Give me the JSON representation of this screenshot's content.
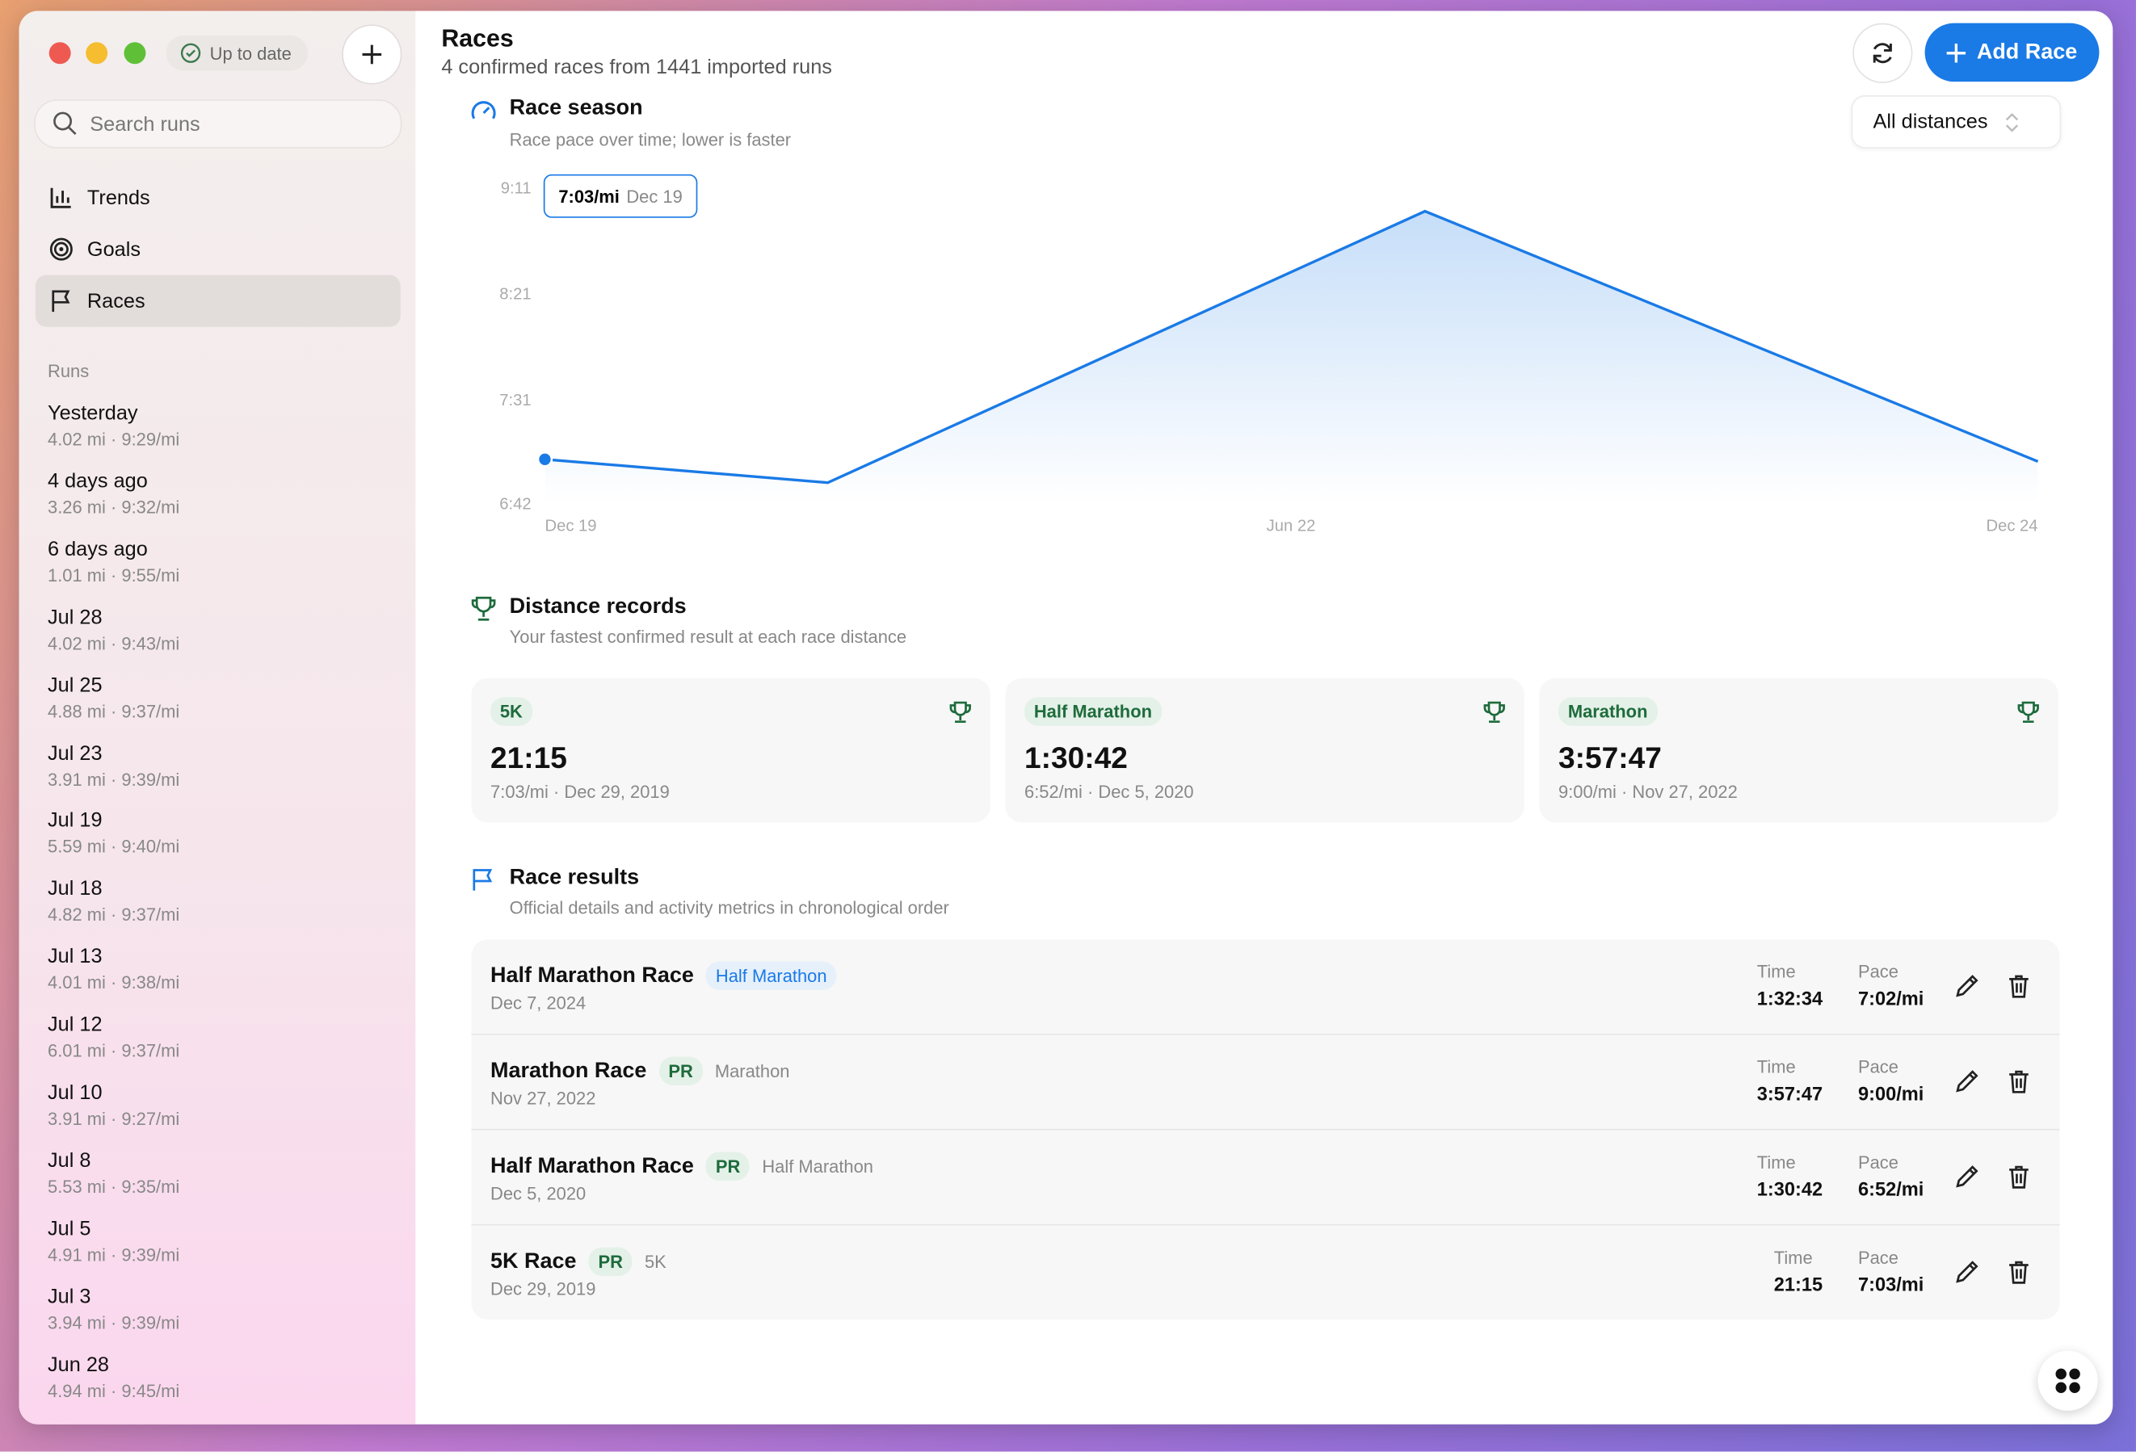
{
  "app": {
    "status": "Up to date"
  },
  "sidebar": {
    "search_placeholder": "Search runs",
    "nav": [
      "Trends",
      "Goals",
      "Races"
    ],
    "runs_heading": "Runs",
    "runs": [
      {
        "date": "Yesterday",
        "detail": "4.02 mi · 9:29/mi"
      },
      {
        "date": "4 days ago",
        "detail": "3.26 mi · 9:32/mi"
      },
      {
        "date": "6 days ago",
        "detail": "1.01 mi · 9:55/mi"
      },
      {
        "date": "Jul 28",
        "detail": "4.02 mi · 9:43/mi"
      },
      {
        "date": "Jul 25",
        "detail": "4.88 mi · 9:37/mi"
      },
      {
        "date": "Jul 23",
        "detail": "3.91 mi · 9:39/mi"
      },
      {
        "date": "Jul 19",
        "detail": "5.59 mi · 9:40/mi"
      },
      {
        "date": "Jul 18",
        "detail": "4.82 mi · 9:37/mi"
      },
      {
        "date": "Jul 13",
        "detail": "4.01 mi · 9:38/mi"
      },
      {
        "date": "Jul 12",
        "detail": "6.01 mi · 9:37/mi"
      },
      {
        "date": "Jul 10",
        "detail": "3.91 mi · 9:27/mi"
      },
      {
        "date": "Jul 8",
        "detail": "5.53 mi · 9:35/mi"
      },
      {
        "date": "Jul 5",
        "detail": "4.91 mi · 9:39/mi"
      },
      {
        "date": "Jul 3",
        "detail": "3.94 mi · 9:39/mi"
      },
      {
        "date": "Jun 28",
        "detail": "4.94 mi · 9:45/mi"
      }
    ]
  },
  "header": {
    "title": "Races",
    "subtitle": "4 confirmed races from 1441 imported runs",
    "add_button": "Add Race"
  },
  "season": {
    "title": "Race season",
    "subtitle": "Race pace over time; lower is faster",
    "filter": "All distances"
  },
  "chart_data": {
    "type": "line",
    "x": [
      "2019-12-29",
      "2020-12-05",
      "2022-11-27",
      "2024-12-07"
    ],
    "series": [
      {
        "color": "#1a7ae6",
        "values": [
          423,
          412,
          540,
          422
        ]
      }
    ],
    "xlim": [
      "2019-12-29",
      "2024-12-07"
    ],
    "xticks": [
      {
        "value": "2019-12-29",
        "label": "Dec 19"
      },
      {
        "value": "2022-06-18",
        "label": "Jun 22"
      },
      {
        "value": "2024-12-07",
        "label": "Dec 24"
      }
    ],
    "ylim": [
      402,
      551
    ],
    "yticks": [
      {
        "value": 551,
        "label": "9:11"
      },
      {
        "value": 501,
        "label": "8:21"
      },
      {
        "value": 451,
        "label": "7:31"
      },
      {
        "value": 402,
        "label": "6:42"
      }
    ],
    "grid": false,
    "area": true,
    "tooltip": {
      "pace": "7:03/mi",
      "date": "Dec 19"
    }
  },
  "records": {
    "title": "Distance records",
    "subtitle": "Your fastest confirmed result at each race distance",
    "items": [
      {
        "distance": "5K",
        "time": "21:15",
        "detail": "7:03/mi · Dec 29, 2019"
      },
      {
        "distance": "Half Marathon",
        "time": "1:30:42",
        "detail": "6:52/mi · Dec 5, 2020"
      },
      {
        "distance": "Marathon",
        "time": "3:57:47",
        "detail": "9:00/mi · Nov 27, 2022"
      }
    ]
  },
  "results": {
    "title": "Race results",
    "subtitle": "Official details and activity metrics in chronological order",
    "time_label": "Time",
    "pace_label": "Pace",
    "items": [
      {
        "name": "Half Marathon Race",
        "distance": "Half Marathon",
        "date": "Dec 7, 2024",
        "time": "1:32:34",
        "pace": "7:02/mi",
        "highlight": true
      },
      {
        "name": "Marathon Race",
        "pr": "PR",
        "distance": "Marathon",
        "date": "Nov 27, 2022",
        "time": "3:57:47",
        "pace": "9:00/mi"
      },
      {
        "name": "Half Marathon Race",
        "pr": "PR",
        "distance": "Half Marathon",
        "date": "Dec 5, 2020",
        "time": "1:30:42",
        "pace": "6:52/mi"
      },
      {
        "name": "5K Race",
        "pr": "PR",
        "distance": "5K",
        "date": "Dec 29, 2019",
        "time": "21:15",
        "pace": "7:03/mi"
      }
    ]
  }
}
